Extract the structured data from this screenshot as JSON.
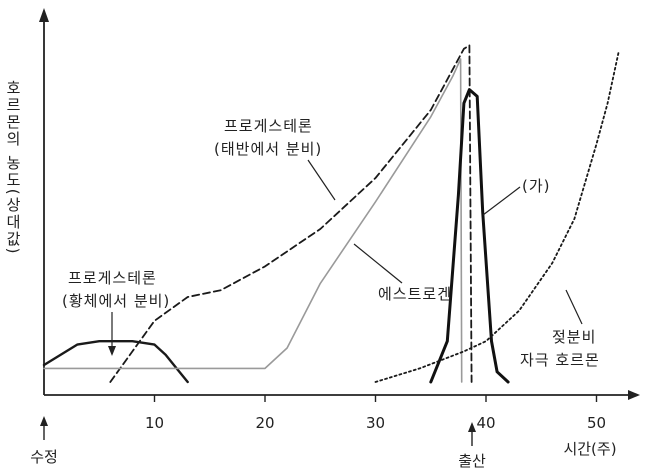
{
  "chart_data": {
    "type": "line",
    "xlabel": "시간(주)",
    "ylabel": "호르몬의 농도(상대값)",
    "xlim": [
      0,
      53
    ],
    "ylim": [
      0,
      100
    ],
    "x_ticks": [
      10,
      20,
      30,
      40,
      50
    ],
    "grid": false,
    "events": [
      {
        "label": "수정",
        "x": 0
      },
      {
        "label": "출산",
        "x": 39
      }
    ],
    "series": [
      {
        "name": "프로게스테론 (황체에서 분비)",
        "style": "solid",
        "x": [
          0,
          3,
          5,
          8,
          10,
          11,
          12,
          13
        ],
        "y": [
          5,
          11,
          12,
          12,
          11,
          8,
          4,
          0
        ]
      },
      {
        "name": "프로게스테론 (태반에서 분비)",
        "style": "dashed",
        "x": [
          6,
          8,
          10,
          13,
          16,
          20,
          25,
          30,
          35,
          38,
          38.5,
          38.7
        ],
        "y": [
          0,
          9,
          18,
          25,
          27,
          34,
          45,
          60,
          80,
          98,
          99,
          0
        ]
      },
      {
        "name": "에스트로겐",
        "style": "solid-gray",
        "x": [
          0,
          10,
          20,
          22,
          25,
          30,
          35,
          37,
          37.7,
          37.8
        ],
        "y": [
          4,
          4,
          4,
          10,
          29,
          53,
          78,
          90,
          95,
          0
        ]
      },
      {
        "name": "(가)",
        "style": "solid-bold",
        "x": [
          35,
          36.5,
          37.5,
          38,
          38.5,
          39.2,
          39.7,
          40.5,
          41,
          42
        ],
        "y": [
          0,
          12,
          55,
          82,
          86,
          84,
          50,
          12,
          3,
          0
        ]
      },
      {
        "name": "젖분비 자극 호르몬",
        "style": "dotted",
        "x": [
          30,
          34,
          38,
          40,
          43,
          46,
          48,
          50,
          51,
          52
        ],
        "y": [
          0,
          4,
          9,
          12,
          21,
          35,
          48,
          70,
          82,
          97
        ]
      }
    ]
  }
}
